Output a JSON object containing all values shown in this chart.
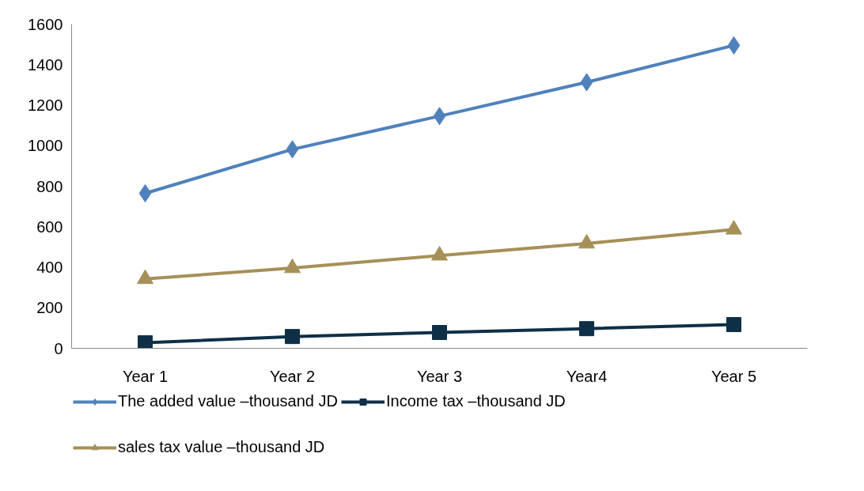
{
  "chart_data": {
    "type": "line",
    "categories": [
      "Year 1",
      "Year 2",
      "Year 3",
      "Year4",
      "Year 5"
    ],
    "series": [
      {
        "name": "The added value –thousand JD",
        "color": "#4f81bd",
        "marker": "diamond",
        "values": [
          765,
          982,
          1146,
          1313,
          1495
        ]
      },
      {
        "name": "Income tax –thousand JD",
        "color": "#0e3047",
        "marker": "square",
        "values": [
          27,
          58,
          78,
          97,
          117
        ]
      },
      {
        "name": "sales tax value –thousand JD",
        "color": "#a69058",
        "marker": "triangle",
        "values": [
          342,
          396,
          458,
          517,
          586
        ]
      }
    ],
    "ylim": [
      0,
      1600
    ],
    "yticks": [
      0,
      200,
      400,
      600,
      800,
      1000,
      1200,
      1400,
      1600
    ],
    "grid": false,
    "legend": "bottom",
    "line_style": "solid"
  }
}
